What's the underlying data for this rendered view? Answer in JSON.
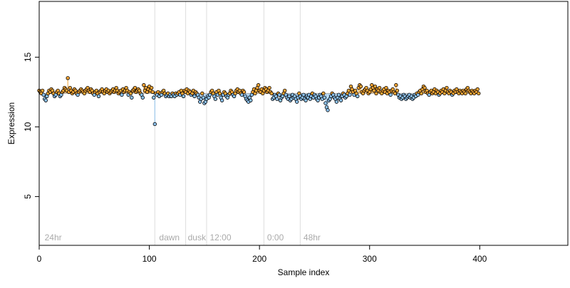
{
  "chart_data": {
    "type": "scatter",
    "title": "",
    "xlabel": "Sample index",
    "ylabel": "Expression",
    "xlim": [
      0,
      480
    ],
    "ylim": [
      1.5,
      19
    ],
    "xticks": [
      "0",
      "100",
      "200",
      "300",
      "400"
    ],
    "yticks": [
      "5",
      "10",
      "15"
    ],
    "baseline": 12.4,
    "grid": false,
    "legend": "none",
    "vlines": [
      105,
      133,
      152,
      204,
      237
    ],
    "annotations": [
      {
        "x": 3,
        "label": "24hr"
      },
      {
        "x": 107,
        "label": "dawn"
      },
      {
        "x": 133,
        "label": "dusk"
      },
      {
        "x": 153,
        "label": "12:00"
      },
      {
        "x": 205,
        "label": "0:00"
      },
      {
        "x": 238,
        "label": "48hr"
      }
    ],
    "colors": {
      "above": "#f4a535",
      "below": "#8ec3ee",
      "baseline": "#aaaaaa",
      "vline": "#dddddd",
      "point_edge": "#000000"
    },
    "y": [
      12.6,
      12.5,
      12.4,
      12.6,
      12.3,
      12.0,
      11.9,
      12.2,
      12.4,
      12.6,
      12.5,
      12.7,
      12.6,
      12.4,
      12.2,
      12.3,
      12.5,
      12.6,
      12.4,
      12.2,
      12.3,
      12.5,
      12.6,
      12.8,
      12.7,
      12.6,
      13.5,
      12.5,
      12.8,
      12.6,
      12.4,
      12.5,
      12.7,
      12.6,
      12.4,
      12.3,
      12.5,
      12.6,
      12.7,
      12.6,
      12.5,
      12.4,
      12.6,
      12.7,
      12.8,
      12.6,
      12.5,
      12.7,
      12.6,
      12.4,
      12.3,
      12.5,
      12.6,
      12.4,
      12.2,
      12.5,
      12.6,
      12.7,
      12.5,
      12.4,
      12.6,
      12.7,
      12.5,
      12.6,
      12.4,
      12.5,
      12.6,
      12.7,
      12.5,
      12.6,
      12.8,
      12.6,
      12.4,
      12.5,
      12.6,
      12.3,
      12.7,
      12.5,
      12.6,
      12.8,
      12.6,
      12.3,
      12.5,
      12.4,
      12.1,
      12.6,
      12.7,
      12.8,
      12.5,
      12.6,
      12.7,
      12.6,
      12.4,
      12.3,
      12.1,
      13.0,
      12.6,
      12.8,
      12.5,
      12.7,
      12.9,
      12.6,
      12.8,
      12.5,
      12.1,
      10.2,
      12.4,
      12.3,
      12.5,
      12.2,
      12.4,
      12.3,
      12.5,
      12.6,
      12.4,
      12.2,
      12.3,
      12.4,
      12.2,
      12.3,
      12.2,
      12.4,
      12.3,
      12.2,
      12.4,
      12.3,
      12.4,
      12.5,
      12.3,
      12.6,
      12.4,
      12.2,
      12.6,
      12.5,
      12.7,
      12.4,
      12.6,
      12.5,
      12.3,
      12.4,
      12.6,
      12.2,
      12.5,
      12.4,
      12.3,
      12.1,
      11.8,
      12.0,
      12.4,
      12.1,
      11.7,
      11.8,
      12.0,
      12.2,
      12.1,
      12.3,
      12.5,
      12.6,
      12.4,
      12.2,
      12.0,
      12.5,
      12.3,
      12.6,
      12.4,
      12.1,
      11.9,
      12.3,
      12.5,
      12.4,
      12.2,
      12.1,
      12.3,
      12.4,
      12.6,
      12.5,
      12.3,
      12.2,
      12.4,
      12.6,
      12.7,
      12.5,
      12.6,
      12.4,
      12.3,
      12.6,
      12.5,
      12.2,
      12.0,
      11.9,
      11.8,
      12.1,
      11.9,
      12.3,
      12.5,
      12.7,
      12.4,
      12.6,
      12.8,
      13.0,
      12.6,
      12.5,
      12.7,
      12.4,
      12.6,
      12.8,
      12.7,
      12.5,
      12.6,
      12.8,
      12.5,
      12.4,
      12.0,
      12.1,
      12.3,
      12.2,
      12.0,
      12.4,
      12.3,
      11.9,
      12.1,
      12.2,
      12.4,
      12.6,
      12.3,
      12.1,
      12.0,
      12.2,
      11.9,
      12.0,
      12.3,
      12.1,
      12.2,
      12.0,
      11.8,
      12.1,
      12.4,
      12.2,
      12.0,
      12.1,
      12.3,
      12.0,
      11.9,
      12.2,
      12.1,
      12.3,
      12.0,
      12.2,
      12.4,
      12.1,
      12.3,
      12.2,
      12.0,
      11.9,
      12.1,
      12.3,
      12.2,
      12.0,
      12.4,
      12.1,
      11.7,
      11.4,
      11.2,
      11.9,
      12.0,
      12.2,
      12.4,
      12.3,
      12.1,
      12.0,
      11.8,
      12.1,
      12.3,
      12.0,
      11.9,
      12.2,
      12.4,
      12.3,
      12.1,
      12.2,
      12.4,
      12.6,
      12.3,
      12.9,
      12.7,
      12.5,
      12.3,
      12.6,
      12.4,
      12.2,
      12.8,
      13.0,
      12.9,
      12.5,
      12.4,
      12.6,
      12.7,
      12.8,
      12.6,
      12.4,
      12.5,
      12.7,
      13.0,
      12.8,
      12.6,
      12.9,
      12.4,
      12.7,
      12.6,
      12.8,
      12.5,
      12.4,
      12.6,
      12.7,
      12.5,
      12.8,
      12.4,
      12.6,
      12.5,
      12.3,
      12.6,
      12.7,
      12.5,
      12.4,
      13.0,
      12.6,
      12.3,
      12.1,
      12.2,
      12.0,
      12.1,
      12.3,
      12.2,
      12.0,
      12.1,
      12.2,
      12.3,
      12.1,
      12.2,
      12.0,
      12.1,
      12.3,
      12.2,
      12.4,
      12.3,
      12.5,
      12.6,
      12.4,
      12.7,
      12.9,
      12.8,
      12.5,
      12.6,
      12.4,
      12.3,
      12.5,
      12.6,
      12.4,
      12.5,
      12.7,
      12.4,
      12.6,
      12.5,
      12.3,
      12.4,
      12.6,
      12.5,
      12.7,
      12.4,
      12.6,
      12.8,
      12.5,
      12.4,
      12.6,
      12.5,
      12.3,
      12.4,
      12.6,
      12.5,
      12.7,
      12.5,
      12.4,
      12.6,
      12.5,
      12.4,
      12.6,
      12.5,
      12.4,
      12.7,
      12.8,
      12.6,
      12.5,
      12.4,
      12.6,
      12.5,
      12.4,
      12.6,
      12.5,
      12.7,
      12.4
    ]
  }
}
